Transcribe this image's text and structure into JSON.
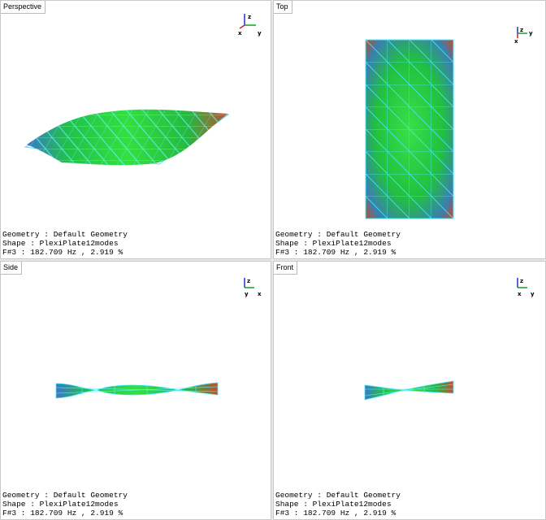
{
  "viewports": [
    {
      "title": "Perspective",
      "axes": [
        "z",
        "x",
        "y"
      ],
      "info": [
        "Geometry : Default Geometry",
        "Shape : PlexiPlate12modes",
        "F#3 : 182.709 Hz , 2.919 %"
      ]
    },
    {
      "title": "Top",
      "axes": [
        "z",
        "x",
        "y"
      ],
      "info": [
        "Geometry : Default Geometry",
        "Shape : PlexiPlate12modes",
        "F#3 : 182.709 Hz , 2.919 %"
      ]
    },
    {
      "title": "Side",
      "axes": [
        "z",
        "y",
        "x"
      ],
      "info": [
        "Geometry : Default Geometry",
        "Shape : PlexiPlate12modes",
        "F#3 : 182.709 Hz , 2.919 %"
      ]
    },
    {
      "title": "Front",
      "axes": [
        "z",
        "x",
        "y"
      ],
      "info": [
        "Geometry : Default Geometry",
        "Shape : PlexiPlate12modes",
        "F#3 : 182.709 Hz , 2.919 %"
      ]
    }
  ]
}
